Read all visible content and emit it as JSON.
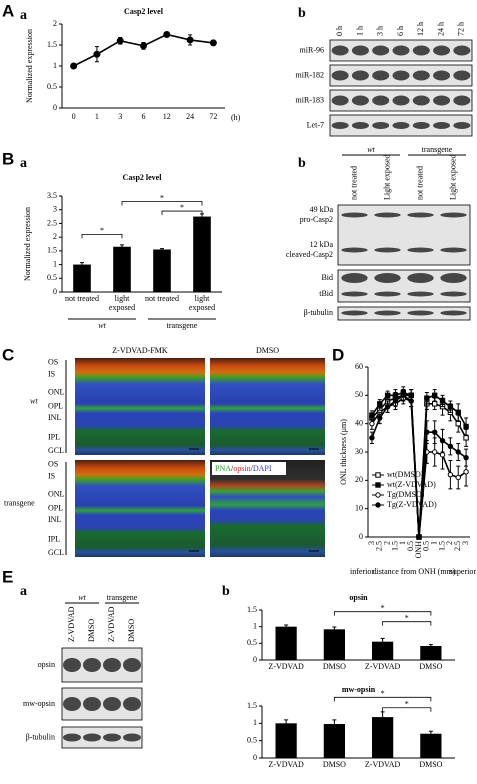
{
  "panel_labels": {
    "A": "A",
    "Aa": "a",
    "Ab": "b",
    "B": "B",
    "Ba": "a",
    "Bb": "b",
    "C": "C",
    "D": "D",
    "E": "E",
    "Ea": "a",
    "Eb": "b"
  },
  "chart_data": [
    {
      "type": "line",
      "title": "Casp2 level",
      "y_label": "Normalized expression",
      "x_unit": "(h)",
      "categories": [
        "0",
        "1",
        "3",
        "6",
        "12",
        "24",
        "72"
      ],
      "values": [
        1.0,
        1.28,
        1.6,
        1.48,
        1.75,
        1.62,
        1.55
      ],
      "errors": [
        0.02,
        0.18,
        0.08,
        0.08,
        0.03,
        0.12,
        0.06
      ],
      "color": "#000000",
      "marker": "circle",
      "filled": true,
      "ylim": [
        0,
        2
      ],
      "yticks": [
        0,
        0.5,
        1,
        1.5,
        2
      ]
    },
    {
      "type": "bar",
      "title": "Casp2 level",
      "y_label": "Normalized expression",
      "categories": [
        "not treated",
        "light exposed",
        "not treated",
        "light exposed"
      ],
      "groups": [
        "wt",
        "transgene"
      ],
      "values": [
        1.0,
        1.65,
        1.55,
        2.75
      ],
      "errors": [
        0.07,
        0.07,
        0.03,
        0.1
      ],
      "color": "#000000",
      "annotations": [
        "*",
        "*",
        "*"
      ],
      "ylim": [
        0,
        3.5
      ],
      "yticks": [
        0,
        0.5,
        1,
        1.5,
        2,
        2.5,
        3,
        3.5
      ]
    },
    {
      "type": "line",
      "y_label": "ONL thickness (μm)",
      "x_label": "distance from ONH (mm)",
      "x_end_labels": [
        "inferior",
        "superior"
      ],
      "categories": [
        "3",
        "2.5",
        "2",
        "1.5",
        "1",
        "0.5",
        "ONH",
        "0.5",
        "1",
        "1.5",
        "2",
        "2.5",
        "3"
      ],
      "ylim": [
        0,
        60
      ],
      "yticks": [
        0,
        10,
        20,
        30,
        40,
        50,
        60
      ],
      "legend": "lower-left",
      "series": [
        {
          "name": "wt(DMSO)",
          "color": "#000000",
          "marker": "square",
          "filled": false,
          "values": [
            42,
            45,
            48,
            49,
            50,
            50,
            0,
            47,
            47,
            46,
            44,
            40,
            35
          ],
          "errors": [
            1.5,
            1.5,
            2,
            2,
            2,
            2,
            0,
            2,
            2,
            3,
            3,
            3,
            3
          ]
        },
        {
          "name": "wt(Z-VDVAD)",
          "color": "#000000",
          "marker": "square",
          "filled": true,
          "values": [
            43,
            47,
            50,
            50,
            51,
            50,
            0,
            49,
            50,
            48,
            46,
            44,
            39
          ],
          "errors": [
            1.5,
            1.5,
            1.5,
            2,
            2,
            2,
            0,
            2,
            2,
            2,
            2,
            3,
            3
          ]
        },
        {
          "name": "Tg(DMSO)",
          "color": "#000000",
          "marker": "circle",
          "filled": false,
          "values": [
            40,
            44,
            46,
            47,
            49,
            48,
            0,
            30,
            30,
            29,
            22,
            21,
            23
          ],
          "errors": [
            2,
            2,
            2,
            2,
            2,
            2,
            0,
            4,
            5,
            5,
            5,
            4,
            5
          ]
        },
        {
          "name": "Tg(Z-VDVAD)",
          "color": "#000000",
          "marker": "circle",
          "filled": true,
          "values": [
            35,
            42,
            46,
            48,
            50,
            48,
            0,
            37,
            37,
            34,
            32,
            30,
            28
          ],
          "errors": [
            2,
            2,
            2,
            2,
            2,
            2,
            0,
            4,
            4,
            4,
            3,
            3,
            3
          ]
        }
      ]
    },
    {
      "type": "bar",
      "title": "opsin",
      "categories": [
        "Z-VDVAD",
        "DMSO",
        "Z-VDVAD",
        "DMSO"
      ],
      "values": [
        1.0,
        0.92,
        0.55,
        0.42
      ],
      "errors": [
        0.05,
        0.07,
        0.1,
        0.04
      ],
      "color": "#000000",
      "annotations": [
        "*",
        "*"
      ],
      "ylim": [
        0,
        1.5
      ],
      "yticks": [
        0,
        0.5,
        1,
        1.5
      ]
    },
    {
      "type": "bar",
      "title": "mw-opsin",
      "categories": [
        "Z-VDVAD",
        "DMSO",
        "Z-VDVAD",
        "DMSO"
      ],
      "values": [
        1.0,
        0.98,
        1.18,
        0.7
      ],
      "errors": [
        0.1,
        0.12,
        0.15,
        0.07
      ],
      "color": "#000000",
      "annotations": [
        "*",
        "*"
      ],
      "ylim": [
        0,
        1.5
      ],
      "yticks": [
        0,
        0.5,
        1,
        1.5
      ]
    }
  ],
  "blots": {
    "Ab": {
      "columns": [
        "0 h",
        "1 h",
        "3 h",
        "6 h",
        "12 h",
        "24 h",
        "72 h"
      ],
      "rows": [
        "miR-96",
        "miR-182",
        "miR-183",
        "Let-7"
      ]
    },
    "Bb": {
      "groups": [
        "wt",
        "transgene"
      ],
      "columns": [
        "not treated",
        "Light exposed",
        "not treated",
        "Light exposed"
      ],
      "rows": [
        {
          "size": "49 kDa",
          "name": "pro-Casp2"
        },
        {
          "size": "12 kDa",
          "name": "cleaved-Casp2"
        },
        {
          "name": "Bid"
        },
        {
          "name": "tBid"
        },
        {
          "name": "β-tubulin"
        }
      ]
    },
    "Ea": {
      "groups": [
        "wt",
        "transgene"
      ],
      "columns": [
        "Z-VDVAD",
        "DMSO",
        "Z-VDVAD",
        "DMSO"
      ],
      "rows": [
        "opsin",
        "mw-opsin",
        "β-tubulin"
      ]
    }
  },
  "micrographs": {
    "columns": [
      "Z-VDVAD-FMK",
      "DMSO"
    ],
    "rows": [
      "wt",
      "transgene"
    ],
    "layers": [
      "OS",
      "IS",
      "ONL",
      "OPL",
      "INL",
      "IPL",
      "GCL"
    ],
    "stain_legend": [
      "PNA",
      "/",
      "opsin",
      "/",
      "DAPI"
    ]
  }
}
